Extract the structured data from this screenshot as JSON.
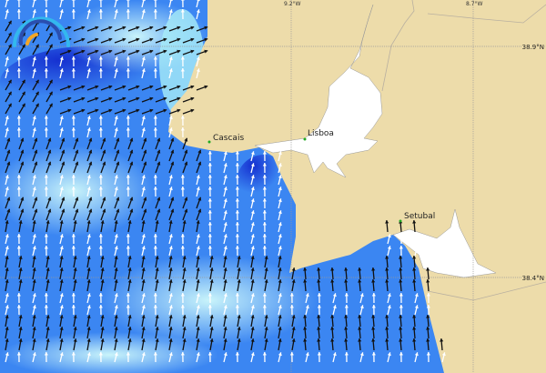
{
  "map": {
    "places": [
      {
        "name": "Cascais"
      },
      {
        "name": "Lisboa"
      },
      {
        "name": "Setubal"
      }
    ],
    "longitude_labels": [
      "9.2°W",
      "8.7°W"
    ],
    "latitude_labels": [
      "38.9°N",
      "38.4°N"
    ],
    "colors": {
      "land": "#eddcaa",
      "water_inland": "#ffffff",
      "ocean_deep": "#1a3fe0",
      "ocean_mid": "#3a8cf5",
      "ocean_light": "#a8ecf8",
      "arrow_strong": "#111111",
      "arrow_weak": "#ffffff"
    },
    "logo": "wave-arc-logo"
  }
}
